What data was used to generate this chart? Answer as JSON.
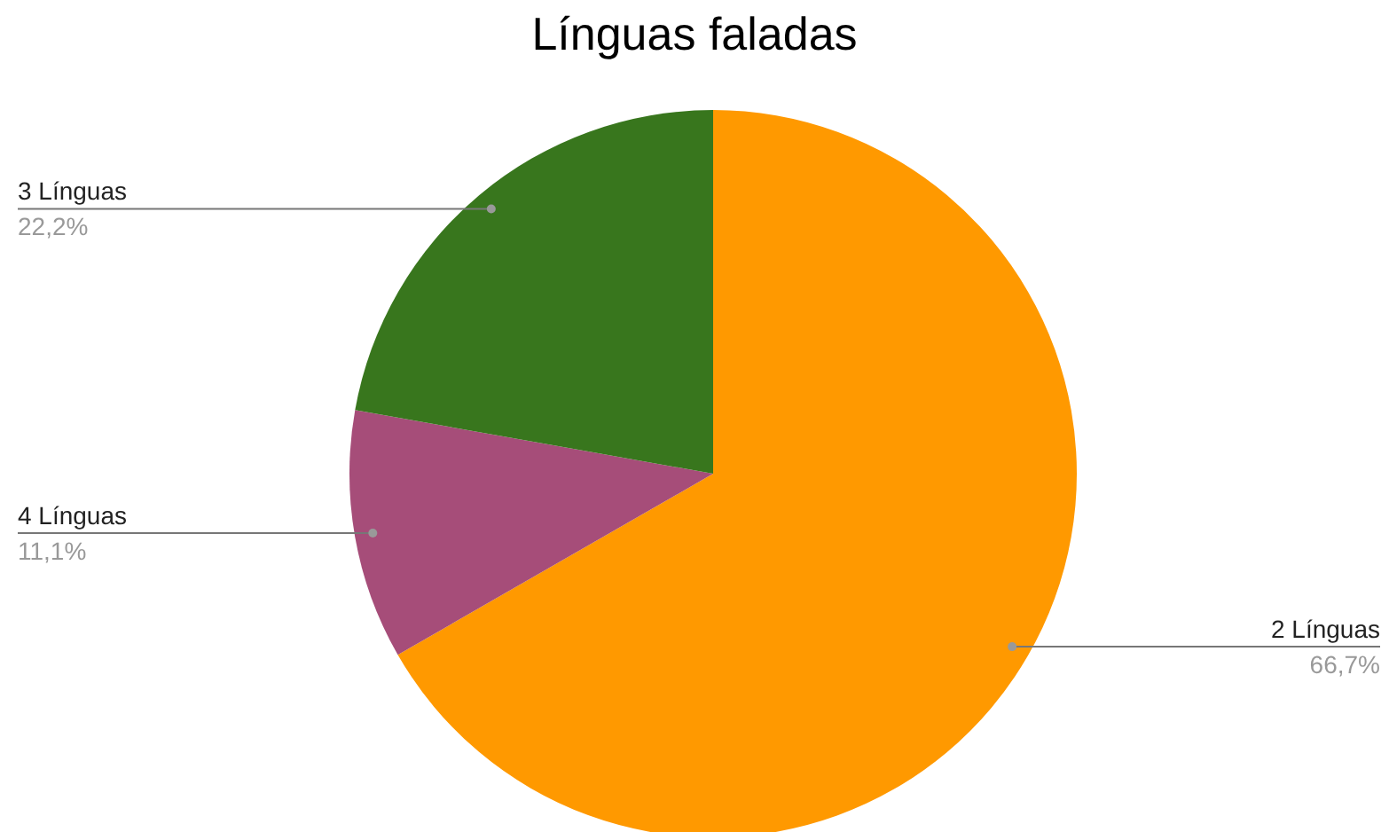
{
  "chart_data": {
    "type": "pie",
    "title": "Línguas faladas",
    "categories": [
      "2 Línguas",
      "4 Línguas",
      "3 Línguas"
    ],
    "values": [
      66.7,
      11.1,
      22.2
    ],
    "colors": [
      "#ff9900",
      "#a64d79",
      "#38761d"
    ],
    "value_labels": [
      "66,7%",
      "11,1%",
      "22,2%"
    ],
    "legend": false
  }
}
